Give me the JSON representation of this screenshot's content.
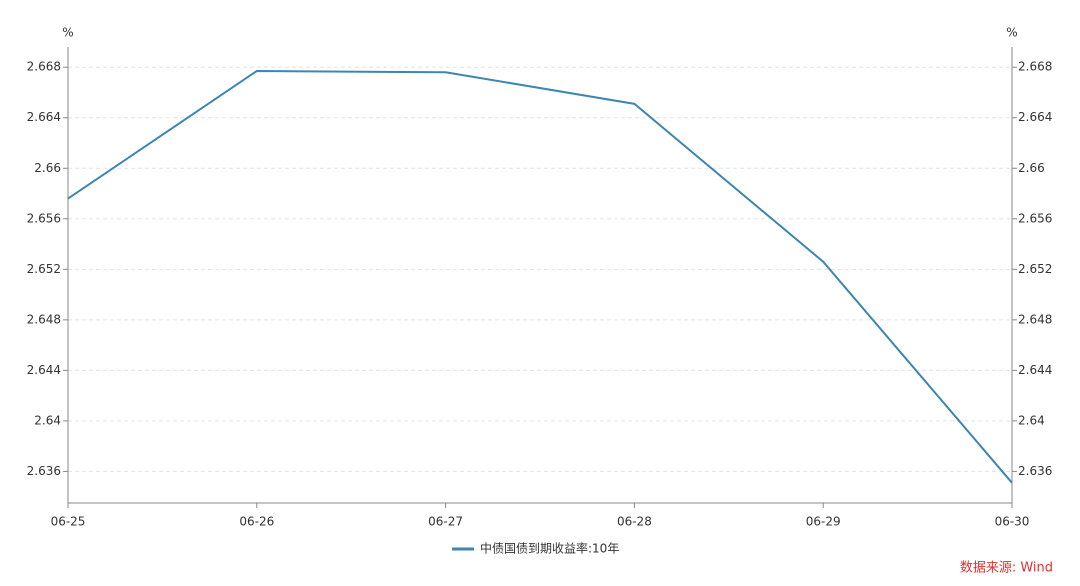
{
  "chart_data": {
    "type": "line",
    "y_unit": "%",
    "y2_unit": "%",
    "categories": [
      "06-25",
      "06-26",
      "06-27",
      "06-28",
      "06-29",
      "06-30"
    ],
    "series": [
      {
        "name": "中债国债到期收益率:10年",
        "color": "#3b87b2",
        "values": [
          2.6576,
          2.6677,
          2.6676,
          2.6651,
          2.6526,
          2.6351
        ]
      }
    ],
    "ylim": [
      2.6335,
      2.6696
    ],
    "yticks": [
      2.636,
      2.64,
      2.644,
      2.648,
      2.652,
      2.656,
      2.66,
      2.664,
      2.668
    ],
    "y2lim": [
      2.6335,
      2.6696
    ],
    "y2ticks": [
      2.636,
      2.64,
      2.644,
      2.648,
      2.652,
      2.656,
      2.66,
      2.664,
      2.668
    ],
    "grid": true,
    "source": "数据来源: Wind"
  }
}
